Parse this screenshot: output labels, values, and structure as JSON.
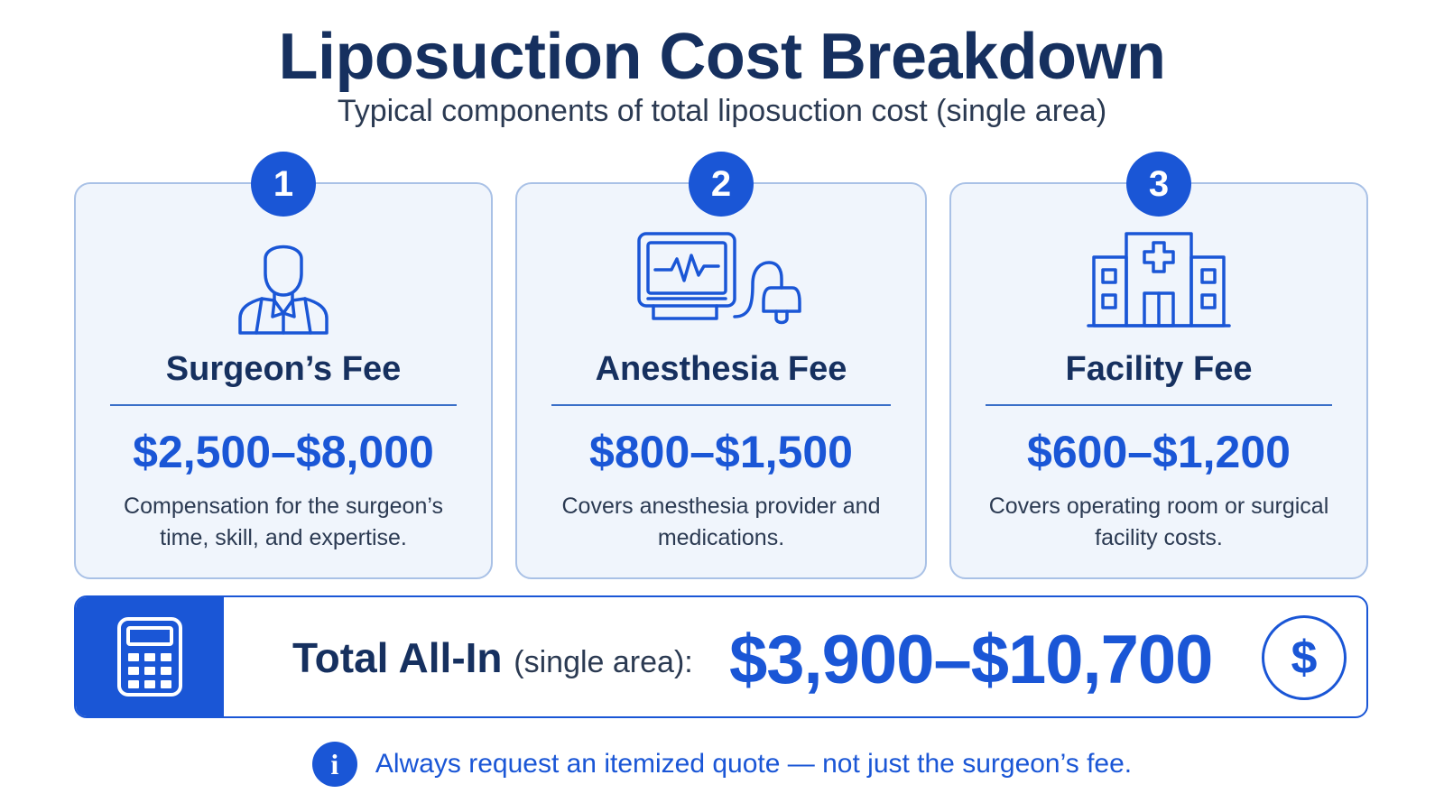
{
  "header": {
    "title": "Liposuction Cost Breakdown",
    "subtitle": "Typical components of total liposuction cost (single area)"
  },
  "cards": [
    {
      "number": "1",
      "icon": "surgeon-icon",
      "title": "Surgeon’s Fee",
      "price": "$2,500–$8,000",
      "description": "Compensation for the surgeon’s time, skill, and expertise."
    },
    {
      "number": "2",
      "icon": "anesthesia-monitor-icon",
      "title": "Anesthesia Fee",
      "price": "$800–$1,500",
      "description": "Covers anesthesia provider and medications."
    },
    {
      "number": "3",
      "icon": "hospital-icon",
      "title": "Facility Fee",
      "price": "$600–$1,200",
      "description": "Covers operating room or surgical facility costs."
    }
  ],
  "total": {
    "icon": "calculator-icon",
    "label": "Total All-In",
    "qualifier": "(single area):",
    "value": "$3,900–$10,700",
    "dollar_symbol": "$"
  },
  "footer": {
    "icon": "info-icon",
    "icon_glyph": "i",
    "text": "Always request an itemized quote — not just the surgeon’s fee."
  },
  "colors": {
    "primary_blue": "#1a56d6",
    "navy_text": "#16305f",
    "card_background": "#f0f5fc",
    "card_border": "#a9c1e6"
  }
}
